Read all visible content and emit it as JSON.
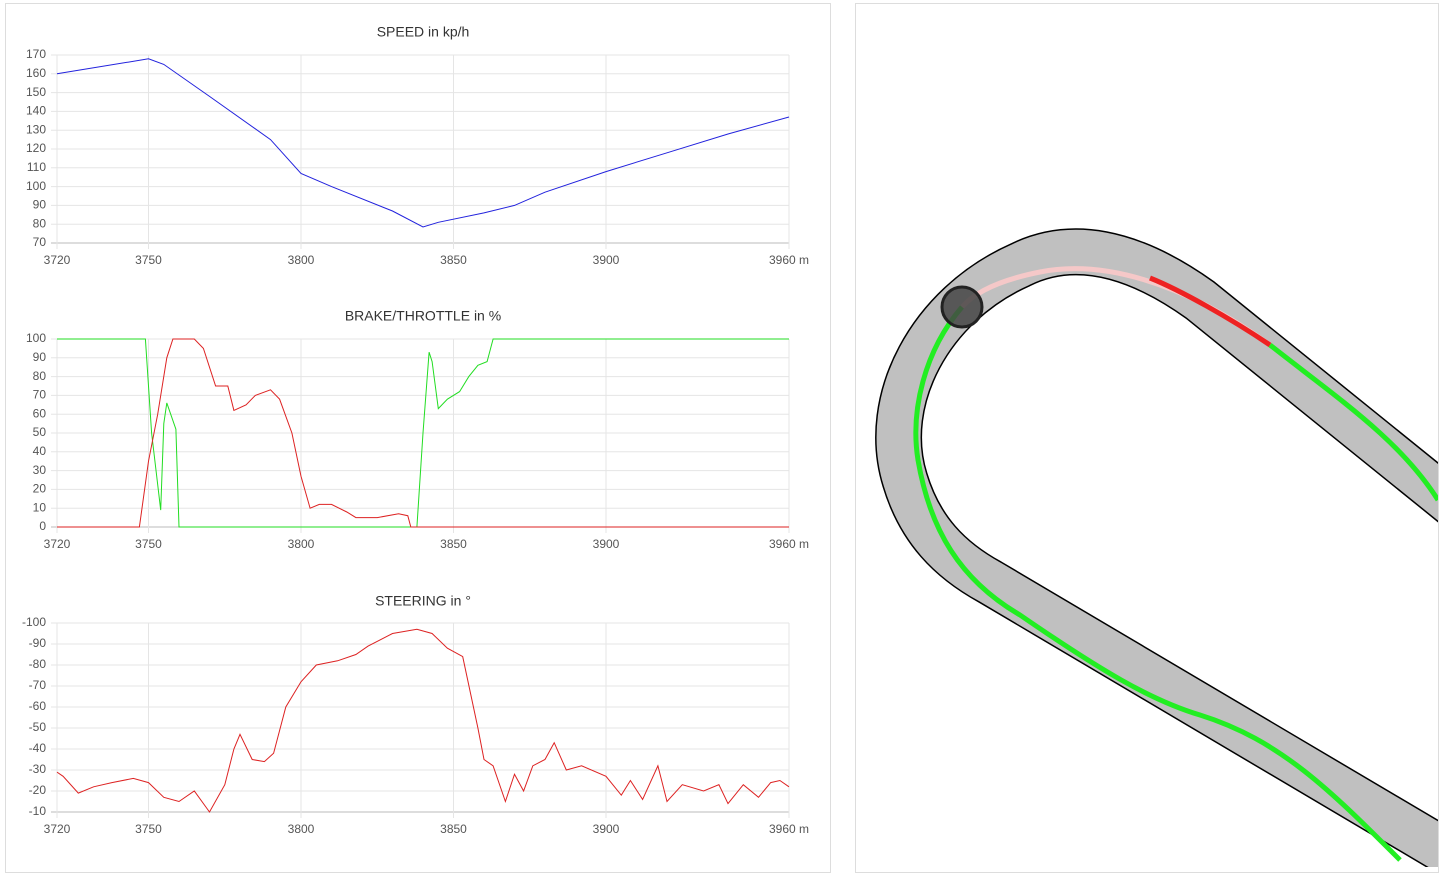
{
  "chart_data": [
    {
      "type": "line",
      "title": "SPEED in kp/h",
      "xlim": [
        3720,
        3960
      ],
      "xticks": [
        3720,
        3750,
        3800,
        3850,
        3900,
        {
          "value": 3960,
          "label": "3960 m"
        }
      ],
      "ylim": [
        70,
        170
      ],
      "yticks": [
        70,
        80,
        90,
        100,
        110,
        120,
        130,
        140,
        150,
        160,
        170
      ],
      "grid": true,
      "series": [
        {
          "color": "#2222dd",
          "x": [
            3720,
            3750,
            3755,
            3770,
            3790,
            3800,
            3810,
            3830,
            3840,
            3845,
            3860,
            3870,
            3880,
            3900,
            3920,
            3940,
            3960
          ],
          "values": [
            160,
            168,
            165,
            148,
            125,
            107,
            100,
            87,
            78.5,
            81,
            86,
            90,
            97,
            108,
            118,
            128,
            137
          ]
        }
      ]
    },
    {
      "type": "line",
      "title": "BRAKE/THROTTLE in %",
      "xlim": [
        3720,
        3960
      ],
      "xticks": [
        3720,
        3750,
        3800,
        3850,
        3900,
        {
          "value": 3960,
          "label": "3960 m"
        }
      ],
      "ylim": [
        0,
        100
      ],
      "yticks": [
        0,
        10,
        20,
        30,
        40,
        50,
        60,
        70,
        80,
        90,
        100
      ],
      "grid": true,
      "series": [
        {
          "color": "#22dd22",
          "x": [
            3720,
            3749,
            3751,
            3754,
            3755,
            3756,
            3759,
            3760,
            3838,
            3840,
            3842,
            3843,
            3845,
            3848,
            3852,
            3855,
            3858,
            3861,
            3863,
            3960
          ],
          "values": [
            100,
            100,
            50,
            9,
            55,
            66,
            52,
            0,
            0,
            50,
            93,
            88,
            63,
            68,
            72,
            80,
            86,
            88,
            100,
            100
          ]
        },
        {
          "color": "#dd2222",
          "x": [
            3720,
            3747,
            3750,
            3753,
            3756,
            3758,
            3765,
            3768,
            3772,
            3776,
            3778,
            3782,
            3785,
            3790,
            3793,
            3797,
            3800,
            3803,
            3806,
            3810,
            3815,
            3818,
            3825,
            3832,
            3835,
            3836,
            3960
          ],
          "values": [
            0,
            0,
            35,
            60,
            90,
            100,
            100,
            95,
            75,
            75,
            62,
            65,
            70,
            73,
            68,
            50,
            27,
            10,
            12,
            12,
            8,
            5,
            5,
            7,
            6,
            0,
            0
          ]
        }
      ]
    },
    {
      "type": "line",
      "title": "STEERING in °",
      "xlim": [
        3720,
        3960
      ],
      "xticks": [
        3720,
        3750,
        3800,
        3850,
        3900,
        {
          "value": 3960,
          "label": "3960 m"
        }
      ],
      "ylim": [
        -10,
        -100
      ],
      "yticks": [
        -10,
        -20,
        -30,
        -40,
        -50,
        -60,
        -70,
        -80,
        -90,
        -100
      ],
      "grid": true,
      "series": [
        {
          "color": "#dd2222",
          "x": [
            3720,
            3722,
            3727,
            3732,
            3738,
            3745,
            3750,
            3755,
            3760,
            3765,
            3770,
            3775,
            3778,
            3780,
            3784,
            3788,
            3791,
            3795,
            3800,
            3805,
            3812,
            3818,
            3822,
            3830,
            3838,
            3843,
            3848,
            3853,
            3858,
            3860,
            3863,
            3867,
            3870,
            3873,
            3876,
            3880,
            3883,
            3887,
            3892,
            3900,
            3905,
            3908,
            3912,
            3917,
            3920,
            3925,
            3932,
            3937,
            3940,
            3945,
            3950,
            3954,
            3957,
            3960
          ],
          "values": [
            -29,
            -27,
            -19,
            -22,
            -24,
            -26,
            -24,
            -17,
            -15,
            -20,
            -10,
            -23,
            -40,
            -47,
            -35,
            -34,
            -38,
            -60,
            -72,
            -80,
            -82,
            -85,
            -89,
            -95,
            -97,
            -95,
            -88,
            -84,
            -50,
            -35,
            -32,
            -15,
            -28,
            -20,
            -32,
            -35,
            -43,
            -30,
            -32,
            -27,
            -18,
            -25,
            -16,
            -32,
            -15,
            -23,
            -20,
            -23,
            -14,
            -23,
            -17,
            -24,
            -25,
            -22
          ]
        }
      ]
    }
  ]
}
